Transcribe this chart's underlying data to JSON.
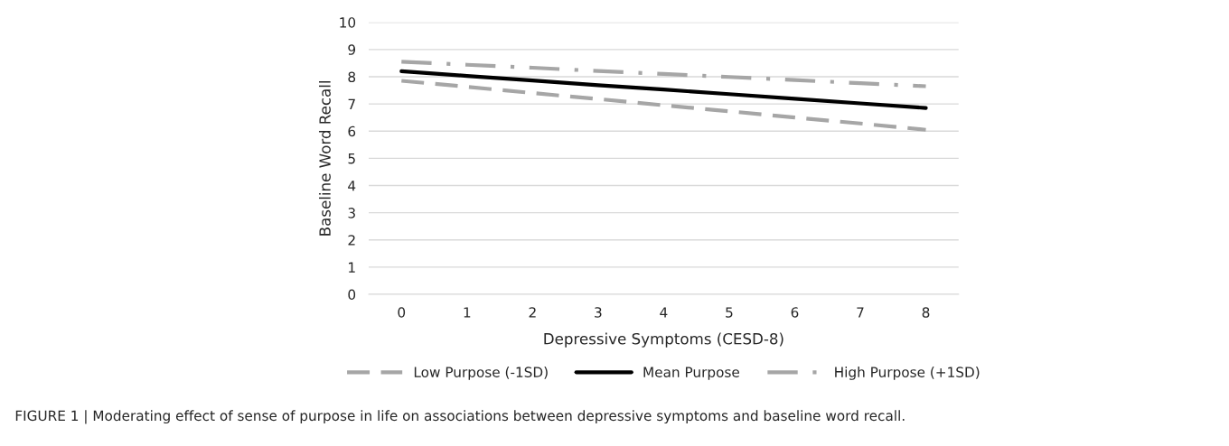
{
  "chart_data": {
    "type": "line",
    "xlabel": "Depressive Symptoms (CESD-8)",
    "ylabel": "Baseline Word Recall",
    "categories": [
      "0",
      "1",
      "2",
      "3",
      "4",
      "5",
      "6",
      "7",
      "8"
    ],
    "ylim": [
      0,
      10
    ],
    "yticks": [
      0,
      1,
      2,
      3,
      4,
      5,
      6,
      7,
      8,
      9,
      10
    ],
    "grid": "y",
    "legend": "bottom",
    "marker": "none",
    "series": [
      {
        "name": "Low Purpose (-1SD)",
        "color": "#a6a6a6",
        "line_style": "dashed",
        "values": [
          7.85,
          7.63,
          7.4,
          7.18,
          6.95,
          6.73,
          6.5,
          6.28,
          6.05
        ]
      },
      {
        "name": "Mean Purpose",
        "color": "#000000",
        "line_style": "solid",
        "values": [
          8.2,
          8.03,
          7.86,
          7.69,
          7.53,
          7.36,
          7.19,
          7.02,
          6.85
        ]
      },
      {
        "name": "High Purpose (+1SD)",
        "color": "#a6a6a6",
        "line_style": "dashdot",
        "values": [
          8.55,
          8.44,
          8.33,
          8.21,
          8.1,
          7.99,
          7.88,
          7.76,
          7.65
        ]
      }
    ],
    "annotations": [
      "FIGURE 1 | Moderating effect of sense of purpose in life on associations between depressive symptoms and baseline word recall."
    ]
  }
}
